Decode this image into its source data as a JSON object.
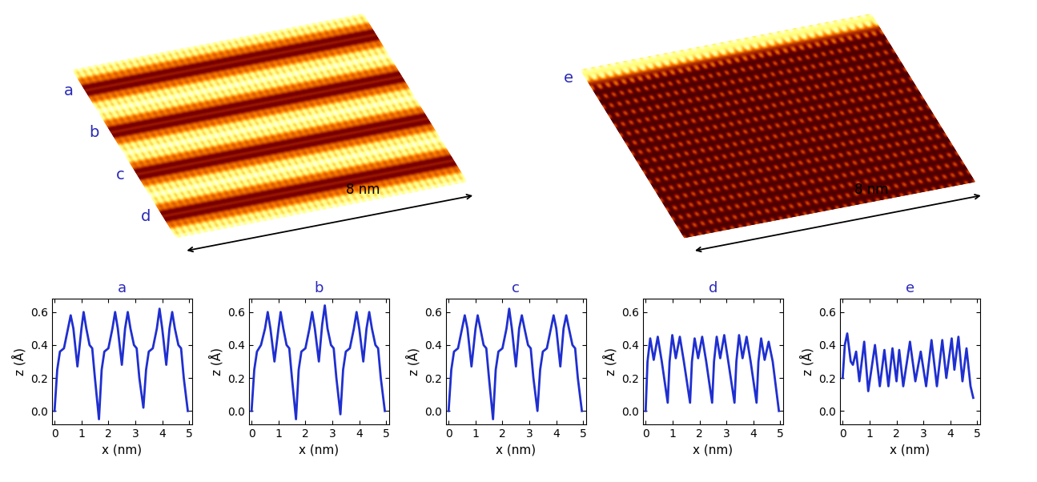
{
  "chart_data": [
    {
      "type": "line",
      "title": "a",
      "x_label": "x (nm)",
      "y_label": "z (Å)",
      "color": "#1f2fd0",
      "x": [
        0,
        0.1,
        0.2,
        0.35,
        0.5,
        0.6,
        0.7,
        0.85,
        1.0,
        1.08,
        1.18,
        1.3,
        1.4,
        1.5,
        1.65,
        1.75,
        1.85,
        2.0,
        2.15,
        2.25,
        2.35,
        2.5,
        2.62,
        2.72,
        2.82,
        2.95,
        3.05,
        3.15,
        3.3,
        3.4,
        3.5,
        3.65,
        3.8,
        3.9,
        4.0,
        4.15,
        4.27,
        4.37,
        4.47,
        4.6,
        4.7,
        4.8,
        4.95
      ],
      "values": [
        0,
        0.25,
        0.36,
        0.38,
        0.5,
        0.58,
        0.5,
        0.27,
        0.5,
        0.6,
        0.5,
        0.4,
        0.38,
        0.2,
        -0.05,
        0.25,
        0.36,
        0.38,
        0.5,
        0.6,
        0.5,
        0.28,
        0.5,
        0.6,
        0.5,
        0.4,
        0.38,
        0.2,
        0.02,
        0.25,
        0.36,
        0.38,
        0.5,
        0.62,
        0.5,
        0.28,
        0.5,
        0.6,
        0.5,
        0.4,
        0.38,
        0.2,
        0.0
      ],
      "xlim": [
        -0.1,
        5.1
      ],
      "ylim": [
        -0.08,
        0.68
      ],
      "xticks": [
        0,
        1,
        2,
        3,
        4,
        5
      ],
      "yticks": [
        0.0,
        0.2,
        0.4,
        0.6
      ]
    },
    {
      "type": "line",
      "title": "b",
      "x_label": "x (nm)",
      "y_label": "z (Å)",
      "color": "#1f2fd0",
      "x": [
        0,
        0.1,
        0.2,
        0.35,
        0.5,
        0.6,
        0.7,
        0.85,
        1.0,
        1.08,
        1.18,
        1.3,
        1.4,
        1.5,
        1.65,
        1.75,
        1.85,
        2.0,
        2.15,
        2.25,
        2.35,
        2.5,
        2.62,
        2.72,
        2.82,
        2.95,
        3.05,
        3.15,
        3.3,
        3.4,
        3.5,
        3.65,
        3.8,
        3.9,
        4.0,
        4.15,
        4.27,
        4.37,
        4.47,
        4.6,
        4.7,
        4.8,
        4.95
      ],
      "values": [
        0,
        0.25,
        0.36,
        0.4,
        0.5,
        0.6,
        0.5,
        0.3,
        0.5,
        0.6,
        0.5,
        0.4,
        0.38,
        0.2,
        -0.05,
        0.25,
        0.36,
        0.38,
        0.5,
        0.6,
        0.5,
        0.3,
        0.52,
        0.64,
        0.5,
        0.4,
        0.38,
        0.2,
        -0.02,
        0.25,
        0.36,
        0.38,
        0.5,
        0.6,
        0.5,
        0.3,
        0.5,
        0.6,
        0.5,
        0.4,
        0.38,
        0.2,
        0.0
      ],
      "xlim": [
        -0.1,
        5.1
      ],
      "ylim": [
        -0.08,
        0.68
      ],
      "xticks": [
        0,
        1,
        2,
        3,
        4,
        5
      ],
      "yticks": [
        0.0,
        0.2,
        0.4,
        0.6
      ]
    },
    {
      "type": "line",
      "title": "c",
      "x_label": "x (nm)",
      "y_label": "z (Å)",
      "color": "#1f2fd0",
      "x": [
        0,
        0.1,
        0.2,
        0.35,
        0.5,
        0.6,
        0.7,
        0.85,
        1.0,
        1.08,
        1.18,
        1.3,
        1.4,
        1.5,
        1.65,
        1.75,
        1.85,
        2.0,
        2.15,
        2.25,
        2.35,
        2.5,
        2.62,
        2.72,
        2.82,
        2.95,
        3.05,
        3.15,
        3.3,
        3.4,
        3.5,
        3.65,
        3.8,
        3.9,
        4.0,
        4.15,
        4.27,
        4.37,
        4.47,
        4.6,
        4.7,
        4.8,
        4.95
      ],
      "values": [
        0,
        0.25,
        0.36,
        0.38,
        0.5,
        0.58,
        0.5,
        0.27,
        0.5,
        0.58,
        0.5,
        0.4,
        0.38,
        0.2,
        -0.05,
        0.25,
        0.36,
        0.38,
        0.5,
        0.62,
        0.5,
        0.27,
        0.5,
        0.58,
        0.5,
        0.4,
        0.38,
        0.2,
        0.0,
        0.25,
        0.36,
        0.38,
        0.5,
        0.58,
        0.5,
        0.27,
        0.5,
        0.58,
        0.5,
        0.4,
        0.38,
        0.2,
        0.0
      ],
      "xlim": [
        -0.1,
        5.1
      ],
      "ylim": [
        -0.08,
        0.68
      ],
      "xticks": [
        0,
        1,
        2,
        3,
        4,
        5
      ],
      "yticks": [
        0.0,
        0.2,
        0.4,
        0.6
      ]
    },
    {
      "type": "line",
      "title": "d",
      "x_label": "x (nm)",
      "y_label": "z (Å)",
      "color": "#1f2fd0",
      "x": [
        0,
        0.07,
        0.17,
        0.3,
        0.45,
        0.6,
        0.82,
        0.89,
        0.99,
        1.12,
        1.27,
        1.42,
        1.65,
        1.72,
        1.82,
        1.95,
        2.1,
        2.25,
        2.47,
        2.54,
        2.64,
        2.77,
        2.92,
        3.07,
        3.3,
        3.37,
        3.47,
        3.6,
        3.75,
        3.9,
        4.12,
        4.19,
        4.29,
        4.42,
        4.57,
        4.72,
        4.95
      ],
      "values": [
        0,
        0.3,
        0.44,
        0.31,
        0.45,
        0.3,
        0.05,
        0.3,
        0.46,
        0.32,
        0.45,
        0.3,
        0.05,
        0.3,
        0.44,
        0.32,
        0.45,
        0.3,
        0.05,
        0.3,
        0.45,
        0.32,
        0.46,
        0.3,
        0.05,
        0.3,
        0.46,
        0.32,
        0.45,
        0.3,
        0.05,
        0.3,
        0.44,
        0.31,
        0.42,
        0.3,
        0.0
      ],
      "xlim": [
        -0.1,
        5.1
      ],
      "ylim": [
        -0.08,
        0.68
      ],
      "xticks": [
        0,
        1,
        2,
        3,
        4,
        5
      ],
      "yticks": [
        0.0,
        0.2,
        0.4,
        0.6
      ]
    },
    {
      "type": "line",
      "title": "e",
      "x_label": "x (nm)",
      "y_label": "z (Å)",
      "color": "#1f2fd0",
      "x": [
        0,
        0.08,
        0.17,
        0.3,
        0.38,
        0.5,
        0.62,
        0.8,
        0.95,
        1.2,
        1.38,
        1.55,
        1.7,
        1.85,
        2.0,
        2.1,
        2.25,
        2.5,
        2.7,
        2.9,
        3.1,
        3.3,
        3.5,
        3.7,
        3.85,
        4.05,
        4.15,
        4.3,
        4.45,
        4.6,
        4.75,
        4.85
      ],
      "values": [
        0.2,
        0.4,
        0.47,
        0.3,
        0.28,
        0.36,
        0.18,
        0.42,
        0.12,
        0.4,
        0.15,
        0.37,
        0.15,
        0.38,
        0.18,
        0.37,
        0.15,
        0.42,
        0.18,
        0.36,
        0.15,
        0.43,
        0.15,
        0.43,
        0.2,
        0.44,
        0.25,
        0.45,
        0.18,
        0.38,
        0.15,
        0.08
      ],
      "xlim": [
        -0.1,
        5.1
      ],
      "ylim": [
        -0.08,
        0.68
      ],
      "xticks": [
        0,
        1,
        2,
        3,
        4,
        5
      ],
      "yticks": [
        0.0,
        0.2,
        0.4,
        0.6
      ]
    }
  ],
  "images": [
    {
      "row_labels": [
        "a",
        "b",
        "c",
        "d"
      ],
      "scale_bar": "8 nm"
    },
    {
      "row_labels": [
        "e"
      ],
      "scale_bar": "8 nm"
    }
  ]
}
